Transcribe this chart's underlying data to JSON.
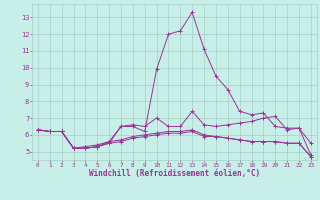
{
  "background_color": "#c8eee8",
  "grid_color": "#a8cec8",
  "line_color": "#993399",
  "xlabel": "Windchill (Refroidissement éolien,°C)",
  "xlim": [
    -0.5,
    23.5
  ],
  "ylim": [
    4.5,
    13.8
  ],
  "yticks": [
    5,
    6,
    7,
    8,
    9,
    10,
    11,
    12,
    13
  ],
  "xticks": [
    0,
    1,
    2,
    3,
    4,
    5,
    6,
    7,
    8,
    9,
    10,
    11,
    12,
    13,
    14,
    15,
    16,
    17,
    18,
    19,
    20,
    21,
    22,
    23
  ],
  "lines": [
    {
      "x": [
        0,
        1,
        2,
        3,
        4,
        5,
        6,
        7,
        8,
        9,
        10,
        11,
        12,
        13,
        14,
        15,
        16,
        17,
        18,
        19,
        20,
        21,
        22,
        23
      ],
      "y": [
        6.3,
        6.2,
        6.2,
        5.2,
        5.2,
        5.3,
        5.5,
        6.5,
        6.5,
        6.2,
        9.9,
        12.0,
        12.2,
        13.3,
        11.1,
        9.5,
        8.7,
        7.4,
        7.2,
        7.3,
        6.5,
        6.4,
        6.4,
        4.8
      ]
    },
    {
      "x": [
        0,
        1,
        2,
        3,
        4,
        5,
        6,
        7,
        8,
        9,
        10,
        11,
        12,
        13,
        14,
        15,
        16,
        17,
        18,
        19,
        20,
        21,
        22,
        23
      ],
      "y": [
        6.3,
        6.2,
        6.2,
        5.2,
        5.2,
        5.3,
        5.6,
        6.5,
        6.6,
        6.5,
        7.0,
        6.5,
        6.5,
        7.4,
        6.6,
        6.5,
        6.6,
        6.7,
        6.8,
        7.0,
        7.1,
        6.3,
        6.4,
        5.5
      ]
    },
    {
      "x": [
        0,
        1,
        2,
        3,
        4,
        5,
        6,
        7,
        8,
        9,
        10,
        11,
        12,
        13,
        14,
        15,
        16,
        17,
        18,
        19,
        20,
        21,
        22,
        23
      ],
      "y": [
        6.3,
        6.2,
        6.2,
        5.2,
        5.3,
        5.4,
        5.6,
        5.7,
        5.9,
        6.0,
        6.1,
        6.2,
        6.2,
        6.3,
        6.0,
        5.9,
        5.8,
        5.7,
        5.6,
        5.6,
        5.6,
        5.5,
        5.5,
        4.7
      ]
    },
    {
      "x": [
        0,
        1,
        2,
        3,
        4,
        5,
        6,
        7,
        8,
        9,
        10,
        11,
        12,
        13,
        14,
        15,
        16,
        17,
        18,
        19,
        20,
        21,
        22,
        23
      ],
      "y": [
        6.3,
        6.2,
        6.2,
        5.2,
        5.2,
        5.3,
        5.5,
        5.6,
        5.8,
        5.9,
        6.0,
        6.1,
        6.1,
        6.2,
        5.9,
        5.9,
        5.8,
        5.7,
        5.6,
        5.6,
        5.6,
        5.5,
        5.5,
        4.7
      ]
    }
  ]
}
